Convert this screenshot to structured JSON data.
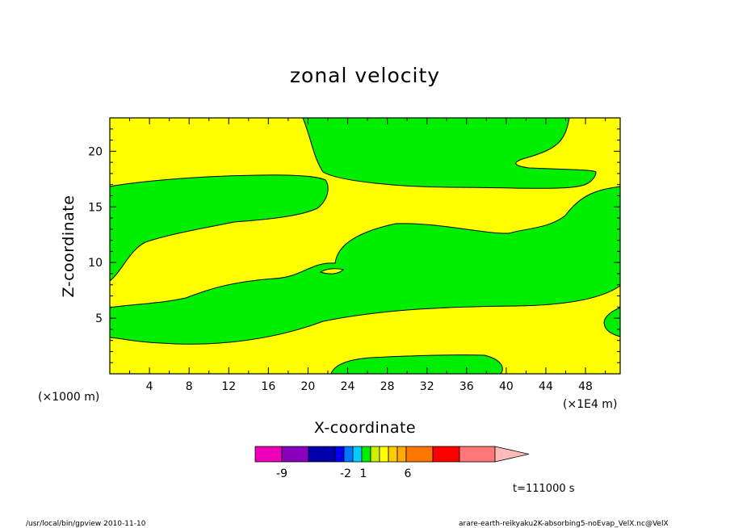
{
  "chart_data": {
    "type": "contour",
    "title": "zonal velocity",
    "xlabel": "X-coordinate",
    "ylabel": "Z-coordinate",
    "x_unit_left": "(×1000 m)",
    "x_unit_right": "(×1E4 m)",
    "xticks": [
      "4",
      "8",
      "12",
      "16",
      "20",
      "24",
      "28",
      "32",
      "36",
      "40",
      "44",
      "48"
    ],
    "yticks": [
      "5",
      "10",
      "15",
      "20"
    ],
    "xlim": [
      0,
      51.5
    ],
    "ylim": [
      0,
      23
    ],
    "colors": {
      "positive": "#ffff00",
      "negative": "#00ee00",
      "line": "#000000"
    },
    "colorbar": {
      "colors": [
        "#ee00bb",
        "#8800bb",
        "#0000aa",
        "#0000ee",
        "#0077ff",
        "#00ccff",
        "#00ee00",
        "#ccee00",
        "#ffff00",
        "#ffcc00",
        "#ffaa00",
        "#ff7700",
        "#ff0000",
        "#ff7777",
        "#ffbbbb"
      ],
      "labels": [
        "-9",
        "-2",
        "1",
        "6"
      ]
    },
    "time_label": "t=111000 s"
  },
  "footer": {
    "left": "/usr/local/bin/gpview  2010-11-10",
    "right": "arare-earth-reikyaku2K-absorbing5-noEvap_VelX.nc@VelX"
  }
}
